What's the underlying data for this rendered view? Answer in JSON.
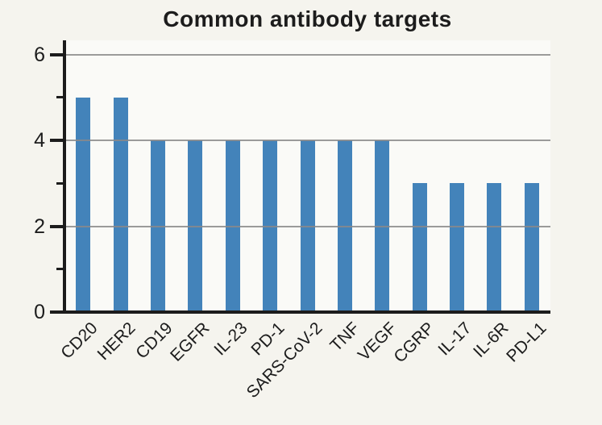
{
  "chart_data": {
    "type": "bar",
    "title": "Common antibody targets",
    "categories": [
      "CD20",
      "HER2",
      "CD19",
      "EGFR",
      "IL-23",
      "PD-1",
      "SARS-CoV-2",
      "TNF",
      "VEGF",
      "CGRP",
      "IL-17",
      "IL-6R",
      "PD-L1"
    ],
    "values": [
      5,
      5,
      4,
      4,
      4,
      4,
      4,
      4,
      4,
      3,
      3,
      3,
      3
    ],
    "xlabel": "",
    "ylabel": "",
    "ylim": [
      0,
      6.33
    ],
    "yticks_major": [
      0,
      2,
      4,
      6
    ],
    "yticks_minor": [
      1,
      3,
      5
    ],
    "gridline_values": [
      2,
      4,
      6
    ],
    "grid": "horizontal, drawn over bars",
    "legend": "none",
    "colors": {
      "bar": "#4383ba",
      "gridline": "#8a8a8a",
      "axis": "#1c1c1c",
      "text": "#1c1c1c",
      "background_outer": "#f5f4ee",
      "background_plot": "#fafaf7"
    }
  }
}
